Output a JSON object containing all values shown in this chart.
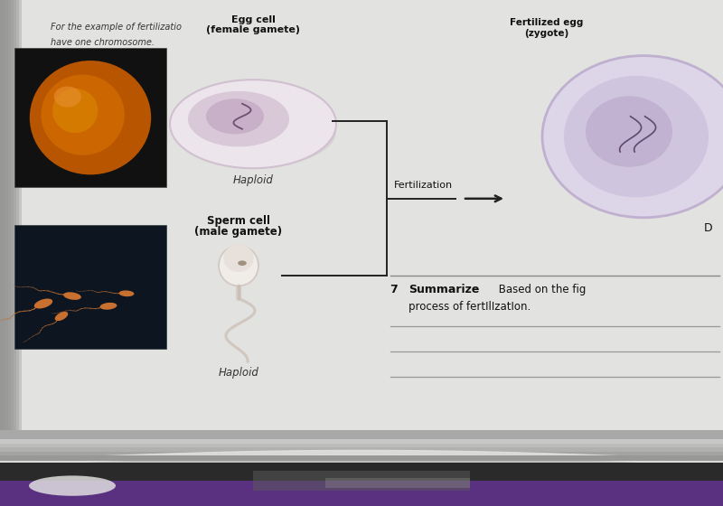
{
  "bg_top_color": "#c8c8c8",
  "bg_bottom_color": "#9090a0",
  "page_color": "#dcdcda",
  "page_color2": "#e2e2e0",
  "title_line1": "For the example of fertilizatio",
  "title_line2": "have one chromosome.",
  "egg_cell_label_line1": "Egg cell",
  "egg_cell_label_line2": "(female gamete)",
  "egg_haploid": "Haploid",
  "sperm_cell_label_line1": "Sperm cell",
  "sperm_cell_label_line2": "(male gamete)",
  "sperm_haploid": "Haploid",
  "fertilized_label_line1": "Fertilized egg",
  "fertilized_label_line2": "(zygote)",
  "fertilization_text": "Fertilization",
  "summarize_bold": "7  Summarize",
  "summarize_rest": " Based on the fig",
  "summarize_line2": "process of fertIlIzatIon.",
  "spine_color": "#3a3a3a",
  "page_edge_color": "#b0b0b0",
  "purple_color": "#5a3080",
  "photo1_bg": "#111111",
  "photo2_bg": "#0d1520",
  "egg_outer_color": "#e8e0e8",
  "egg_outer_edge": "#c0b0c0",
  "egg_inner_color": "#d0c0d0",
  "egg_shadow_color": "#c8a8c0",
  "zygote_outer_color": "#d8d0e0",
  "zygote_outer_edge": "#b8a8c8",
  "zygote_inner_color": "#c8bcd4",
  "bracket_color": "#222222",
  "arrow_color": "#222222",
  "text_color": "#111111",
  "text_color2": "#333333",
  "line_color": "#999999"
}
